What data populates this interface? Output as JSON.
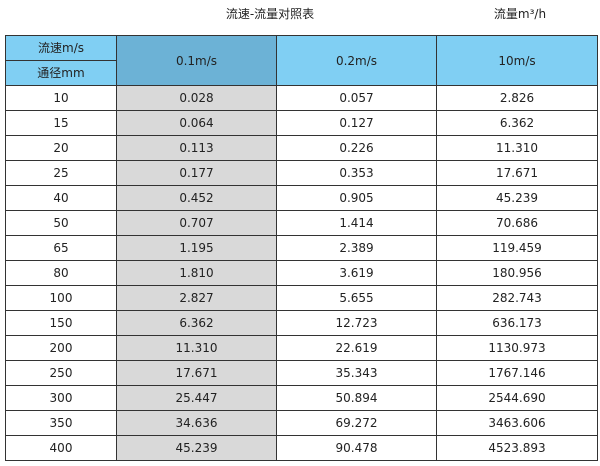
{
  "title": "流速-流量对照表",
  "unit": "流量m³/h",
  "header": {
    "velocity_label": "流速m/s",
    "diameter_label": "通径mm",
    "columns": [
      "0.1m/s",
      "0.2m/s",
      "10m/s"
    ]
  },
  "colors": {
    "header": "#80cff3",
    "highlight_header": "#6cb2d6",
    "highlight_column": "#d9d9d9"
  },
  "rows": [
    [
      "10",
      "0.028",
      "0.057",
      "2.826"
    ],
    [
      "15",
      "0.064",
      "0.127",
      "6.362"
    ],
    [
      "20",
      "0.113",
      "0.226",
      "11.310"
    ],
    [
      "25",
      "0.177",
      "0.353",
      "17.671"
    ],
    [
      "40",
      "0.452",
      "0.905",
      "45.239"
    ],
    [
      "50",
      "0.707",
      "1.414",
      "70.686"
    ],
    [
      "65",
      "1.195",
      "2.389",
      "119.459"
    ],
    [
      "80",
      "1.810",
      "3.619",
      "180.956"
    ],
    [
      "100",
      "2.827",
      "5.655",
      "282.743"
    ],
    [
      "150",
      "6.362",
      "12.723",
      "636.173"
    ],
    [
      "200",
      "11.310",
      "22.619",
      "1130.973"
    ],
    [
      "250",
      "17.671",
      "35.343",
      "1767.146"
    ],
    [
      "300",
      "25.447",
      "50.894",
      "2544.690"
    ],
    [
      "350",
      "34.636",
      "69.272",
      "3463.606"
    ],
    [
      "400",
      "45.239",
      "90.478",
      "4523.893"
    ]
  ]
}
